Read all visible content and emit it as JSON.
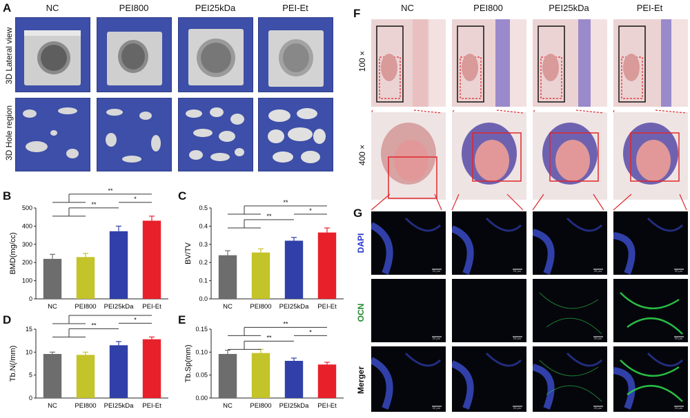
{
  "panels": {
    "A": "A",
    "B": "B",
    "C": "C",
    "D": "D",
    "E": "E",
    "F": "F",
    "G": "G"
  },
  "groups": [
    "NC",
    "PEI800",
    "PEI25kDa",
    "PEI-Et"
  ],
  "panelA": {
    "row_labels": [
      "3D Lateral view",
      "3D Hole region"
    ]
  },
  "panelF": {
    "row_labels": [
      "100 ×",
      "400 ×"
    ]
  },
  "panelG": {
    "row_labels": [
      "DAPI",
      "OCN",
      "Merger"
    ],
    "scale_bar": "20 μm",
    "row_colors": [
      "#2233cc",
      "#1f8a2a",
      "#111111"
    ]
  },
  "bar_colors": [
    "#6d6d6d",
    "#c3c32a",
    "#3040a8",
    "#e8202a"
  ],
  "chart_data": [
    {
      "id": "B",
      "type": "bar",
      "categories": [
        "NC",
        "PEI800",
        "PEI25kDa",
        "PEI-Et"
      ],
      "values": [
        220,
        230,
        372,
        430
      ],
      "errors": [
        25,
        20,
        28,
        25
      ],
      "ylabel": "BMD(mg/cc)",
      "xlabel": "",
      "ylim": [
        0,
        500
      ],
      "yticks": [
        "0",
        "100",
        "200",
        "300",
        "400",
        "500"
      ],
      "significance": [
        {
          "from": [
            0,
            1
          ],
          "to": 2,
          "label": "**"
        },
        {
          "from": [
            0,
            1
          ],
          "to": 3,
          "label": "**"
        },
        {
          "from": [
            2
          ],
          "to": 3,
          "label": "*"
        }
      ]
    },
    {
      "id": "C",
      "type": "bar",
      "categories": [
        "NC",
        "PEI800",
        "PEI25kDa",
        "PEI-Et"
      ],
      "values": [
        0.24,
        0.255,
        0.32,
        0.365
      ],
      "errors": [
        0.025,
        0.02,
        0.018,
        0.025
      ],
      "ylabel": "BV/TV",
      "xlabel": "",
      "ylim": [
        0,
        0.5
      ],
      "yticks": [
        "0.0",
        "0.1",
        "0.2",
        "0.3",
        "0.4",
        "0.5"
      ],
      "significance": [
        {
          "from": [
            0,
            1
          ],
          "to": 2,
          "label": "**"
        },
        {
          "from": [
            0,
            1
          ],
          "to": 3,
          "label": "**"
        },
        {
          "from": [
            2
          ],
          "to": 3,
          "label": "*"
        }
      ]
    },
    {
      "id": "D",
      "type": "bar",
      "categories": [
        "NC",
        "PEI800",
        "PEI25kDa",
        "PEI-Et"
      ],
      "values": [
        9.6,
        9.4,
        11.5,
        12.8
      ],
      "errors": [
        0.4,
        0.6,
        0.8,
        0.5
      ],
      "ylabel": "Tb.N(/mm)",
      "xlabel": "",
      "ylim": [
        0,
        15
      ],
      "yticks": [
        "0",
        "5",
        "10",
        "15"
      ],
      "significance": [
        {
          "from": [
            0,
            1
          ],
          "to": 2,
          "label": "**"
        },
        {
          "from": [
            0,
            1
          ],
          "to": 3,
          "label": "**"
        },
        {
          "from": [
            2
          ],
          "to": 3,
          "label": "*"
        }
      ]
    },
    {
      "id": "E",
      "type": "bar",
      "categories": [
        "NC",
        "PEI800",
        "PEI25kDa",
        "PEI-Et"
      ],
      "values": [
        0.096,
        0.098,
        0.081,
        0.073
      ],
      "errors": [
        0.008,
        0.008,
        0.006,
        0.005
      ],
      "ylabel": "Tb.Sp(mm)",
      "xlabel": "",
      "ylim": [
        0,
        0.15
      ],
      "yticks": [
        "0.00",
        "0.05",
        "0.10",
        "0.15"
      ],
      "significance": [
        {
          "from": [
            0,
            1
          ],
          "to": 2,
          "label": "**"
        },
        {
          "from": [
            0,
            1
          ],
          "to": 3,
          "label": "**"
        },
        {
          "from": [
            2
          ],
          "to": 3,
          "label": "*"
        }
      ]
    }
  ]
}
